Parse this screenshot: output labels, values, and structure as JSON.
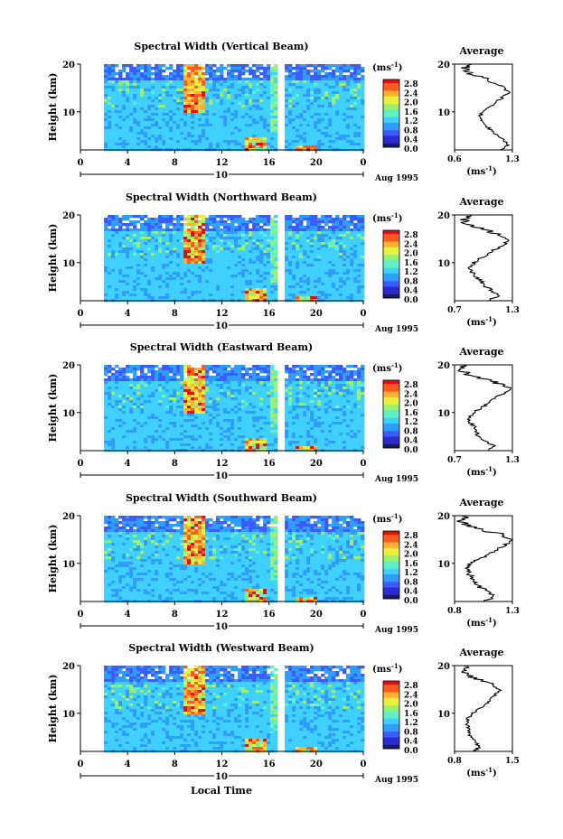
{
  "figure": {
    "xlabel": "Local Time",
    "date_label": "Aug 1995",
    "day_label": "10"
  },
  "colorbar": {
    "unit_label": "(ms",
    "unit_exp": "-1",
    "unit_close": ")",
    "tick_labels": [
      "2.8",
      "2.4",
      "2.0",
      "1.6",
      "1.2",
      "0.8",
      "0.4",
      "0.0"
    ],
    "colors": [
      "#1a1a5e",
      "#2b2bd0",
      "#3a5cff",
      "#2f9cff",
      "#3fd0ff",
      "#5ff0c8",
      "#9cf070",
      "#e8f040",
      "#ffb030",
      "#ff5a20",
      "#e01010"
    ]
  },
  "average": {
    "title": "Average",
    "unit_label": "(ms",
    "unit_exp": "-1",
    "unit_close": ")"
  },
  "chart_data": [
    {
      "type": "heatmap",
      "title": "Spectral Width (Vertical Beam)",
      "ylabel": "Height (km)",
      "x_ticks": [
        "0",
        "4",
        "8",
        "12",
        "16",
        "20",
        "0"
      ],
      "y_ticks": [
        "20",
        "10"
      ],
      "xlim": [
        0,
        24
      ],
      "ylim": [
        2,
        20
      ],
      "data_gaps": [
        [
          0,
          2
        ],
        [
          16.7,
          17.3
        ]
      ],
      "colorbar_range": [
        0.0,
        3.0
      ],
      "average_profile": {
        "x_ticks": [
          "0.6",
          "1.3"
        ],
        "y_ticks": [
          "20",
          "10"
        ],
        "xlim": [
          0.6,
          1.3
        ],
        "ylim": [
          2,
          20
        ],
        "height_km": [
          2,
          3,
          4,
          5,
          6,
          7,
          8,
          9,
          10,
          11,
          12,
          13,
          14,
          15,
          16,
          17,
          18,
          19,
          20
        ],
        "value": [
          1.15,
          1.25,
          1.2,
          1.12,
          1.05,
          0.98,
          0.92,
          0.9,
          0.95,
          1.02,
          1.1,
          1.18,
          1.25,
          1.2,
          1.1,
          0.98,
          0.8,
          0.72,
          0.75
        ]
      }
    },
    {
      "type": "heatmap",
      "title": "Spectral Width (Northward Beam)",
      "ylabel": "Height (km)",
      "x_ticks": [
        "0",
        "4",
        "8",
        "12",
        "16",
        "20",
        "0"
      ],
      "y_ticks": [
        "20",
        "10"
      ],
      "xlim": [
        0,
        24
      ],
      "ylim": [
        2,
        20
      ],
      "data_gaps": [
        [
          0,
          2
        ],
        [
          16.7,
          17.3
        ]
      ],
      "colorbar_range": [
        0.0,
        3.0
      ],
      "average_profile": {
        "x_ticks": [
          "0.7",
          "1.3"
        ],
        "y_ticks": [
          "20",
          "10"
        ],
        "xlim": [
          0.7,
          1.3
        ],
        "ylim": [
          2,
          20
        ],
        "height_km": [
          2,
          3,
          4,
          5,
          6,
          7,
          8,
          9,
          10,
          11,
          12,
          13,
          14,
          15,
          16,
          17,
          18,
          19,
          20
        ],
        "value": [
          1.05,
          1.15,
          1.1,
          1.02,
          0.98,
          0.92,
          0.88,
          0.86,
          0.9,
          0.98,
          1.05,
          1.15,
          1.22,
          1.25,
          1.15,
          1.0,
          0.82,
          0.8,
          0.85
        ]
      }
    },
    {
      "type": "heatmap",
      "title": "Spectral Width (Eastward Beam)",
      "ylabel": "Height (km)",
      "x_ticks": [
        "0",
        "4",
        "8",
        "12",
        "16",
        "20",
        "0"
      ],
      "y_ticks": [
        "20",
        "10"
      ],
      "xlim": [
        0,
        24
      ],
      "ylim": [
        2,
        20
      ],
      "data_gaps": [
        [
          0,
          2
        ],
        [
          16.7,
          17.3
        ]
      ],
      "colorbar_range": [
        0.0,
        3.0
      ],
      "average_profile": {
        "x_ticks": [
          "0.7",
          "1.3"
        ],
        "y_ticks": [
          "20",
          "10"
        ],
        "xlim": [
          0.7,
          1.3
        ],
        "ylim": [
          2,
          20
        ],
        "height_km": [
          2,
          3,
          4,
          5,
          6,
          7,
          8,
          9,
          10,
          11,
          12,
          13,
          14,
          15,
          16,
          17,
          18,
          19,
          20
        ],
        "value": [
          1.05,
          1.1,
          1.02,
          0.95,
          0.92,
          0.9,
          0.86,
          0.85,
          0.9,
          0.98,
          1.05,
          1.12,
          1.2,
          1.28,
          1.18,
          1.0,
          0.82,
          0.78,
          0.8
        ]
      }
    },
    {
      "type": "heatmap",
      "title": "Spectral Width (Southward Beam)",
      "ylabel": "Height (km)",
      "x_ticks": [
        "0",
        "4",
        "8",
        "12",
        "16",
        "20",
        "0"
      ],
      "y_ticks": [
        "20",
        "10"
      ],
      "xlim": [
        0,
        24
      ],
      "ylim": [
        2,
        20
      ],
      "data_gaps": [
        [
          0,
          2
        ],
        [
          16.7,
          17.3
        ]
      ],
      "colorbar_range": [
        0.0,
        3.0
      ],
      "average_profile": {
        "x_ticks": [
          "0.8",
          "1.3"
        ],
        "y_ticks": [
          "20",
          "10"
        ],
        "xlim": [
          0.8,
          1.3
        ],
        "ylim": [
          2,
          20
        ],
        "height_km": [
          2,
          3,
          4,
          5,
          6,
          7,
          8,
          9,
          10,
          11,
          12,
          13,
          14,
          15,
          16,
          17,
          18,
          19,
          20
        ],
        "value": [
          1.05,
          1.15,
          1.1,
          1.02,
          0.98,
          0.95,
          0.92,
          0.9,
          0.95,
          1.02,
          1.1,
          1.18,
          1.25,
          1.28,
          1.2,
          1.05,
          0.9,
          0.85,
          0.88
        ]
      }
    },
    {
      "type": "heatmap",
      "title": "Spectral Width (Westward Beam)",
      "ylabel": "Height (km)",
      "x_ticks": [
        "0",
        "4",
        "8",
        "12",
        "16",
        "20",
        "0"
      ],
      "y_ticks": [
        "20",
        "10"
      ],
      "xlim": [
        0,
        24
      ],
      "ylim": [
        2,
        20
      ],
      "data_gaps": [
        [
          0,
          2
        ],
        [
          16.7,
          17.3
        ]
      ],
      "colorbar_range": [
        0.0,
        3.0
      ],
      "average_profile": {
        "x_ticks": [
          "0.8",
          "1.5"
        ],
        "y_ticks": [
          "20",
          "10"
        ],
        "xlim": [
          0.8,
          1.5
        ],
        "ylim": [
          2,
          20
        ],
        "height_km": [
          2,
          3,
          4,
          5,
          6,
          7,
          8,
          9,
          10,
          11,
          12,
          13,
          14,
          15,
          16,
          17,
          18,
          19,
          20
        ],
        "value": [
          1.05,
          1.1,
          1.05,
          1.0,
          0.98,
          0.96,
          0.95,
          0.97,
          1.02,
          1.1,
          1.18,
          1.25,
          1.3,
          1.35,
          1.25,
          1.1,
          0.95,
          0.92,
          0.95
        ]
      }
    }
  ]
}
